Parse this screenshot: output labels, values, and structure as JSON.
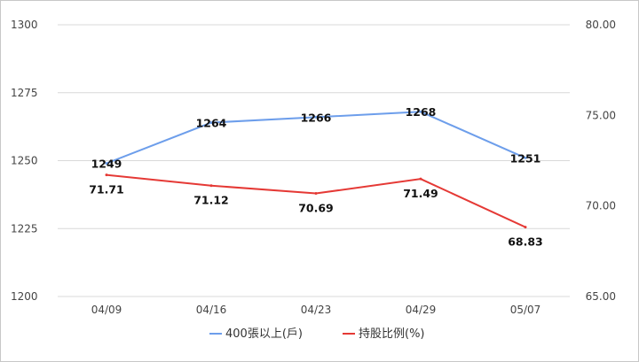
{
  "chart_data": {
    "type": "line",
    "categories": [
      "04/09",
      "04/16",
      "04/23",
      "04/29",
      "05/07"
    ],
    "series": [
      {
        "name": "400張以上(戶)",
        "axis": "left",
        "color": "#6d9eeb",
        "values": [
          1249,
          1264,
          1266,
          1268,
          1251
        ],
        "labels": [
          "1249",
          "1264",
          "1266",
          "1268",
          "1251"
        ]
      },
      {
        "name": "持股比例(%)",
        "axis": "right",
        "color": "#e53935",
        "values": [
          71.71,
          71.12,
          70.69,
          71.49,
          68.83
        ],
        "labels": [
          "71.71",
          "71.12",
          "70.69",
          "71.49",
          "68.83"
        ]
      }
    ],
    "y_left": {
      "min": 1200,
      "max": 1300,
      "ticks": [
        "1200",
        "1225",
        "1250",
        "1275",
        "1300"
      ]
    },
    "y_right": {
      "min": 65,
      "max": 80,
      "ticks": [
        "65.00",
        "70.00",
        "75.00",
        "80.00"
      ]
    },
    "grid": true,
    "legend_position": "bottom"
  }
}
